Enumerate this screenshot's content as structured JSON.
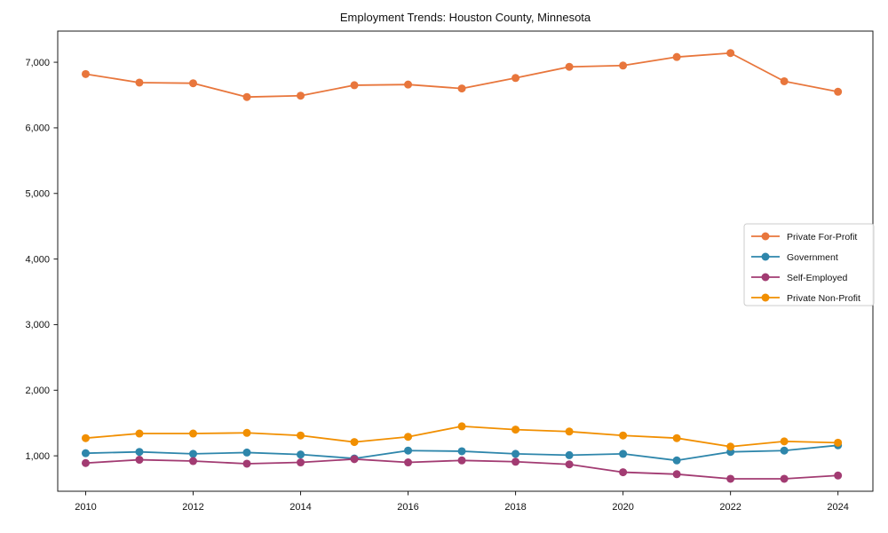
{
  "chart_data": {
    "type": "line",
    "title": "Employment Trends: Houston County, Minnesota",
    "xlabel": "",
    "ylabel": "",
    "x": [
      2010,
      2011,
      2012,
      2013,
      2014,
      2015,
      2016,
      2017,
      2018,
      2019,
      2020,
      2021,
      2022,
      2023,
      2024
    ],
    "series": [
      {
        "name": "Private For-Profit",
        "color": "#E8763C",
        "values": [
          6820,
          6690,
          6680,
          6470,
          6490,
          6650,
          6660,
          6600,
          6760,
          6930,
          6950,
          7080,
          7140,
          6710,
          6550
        ]
      },
      {
        "name": "Government",
        "color": "#2E86AB",
        "values": [
          1040,
          1060,
          1030,
          1050,
          1020,
          960,
          1080,
          1070,
          1030,
          1010,
          1030,
          930,
          1060,
          1080,
          1160
        ]
      },
      {
        "name": "Self-Employed",
        "color": "#A23B72",
        "values": [
          890,
          940,
          920,
          880,
          900,
          950,
          900,
          930,
          910,
          870,
          750,
          720,
          650,
          650,
          700
        ]
      },
      {
        "name": "Private Non-Profit",
        "color": "#F18F01",
        "values": [
          1270,
          1340,
          1340,
          1350,
          1310,
          1210,
          1290,
          1450,
          1400,
          1370,
          1310,
          1270,
          1140,
          1220,
          1200
        ]
      }
    ],
    "xticks": [
      2010,
      2012,
      2014,
      2016,
      2018,
      2020,
      2022,
      2024
    ],
    "xtick_labels": [
      "2010",
      "2012",
      "2014",
      "2016",
      "2018",
      "2020",
      "2022",
      "2024"
    ],
    "yticks": [
      1000,
      2000,
      3000,
      4000,
      5000,
      6000,
      7000
    ],
    "ytick_labels": [
      "1,000",
      "2,000",
      "3,000",
      "4,000",
      "5,000",
      "6,000",
      "7,000"
    ],
    "xlim": [
      2009.48,
      2024.65
    ],
    "ylim": [
      460,
      7475
    ],
    "grid": false,
    "legend_position": "center-right",
    "marker": "circle",
    "axis_color": "#1a1a1a",
    "tick_label_color": "#111111",
    "legend_border_color": "#cccccc"
  }
}
